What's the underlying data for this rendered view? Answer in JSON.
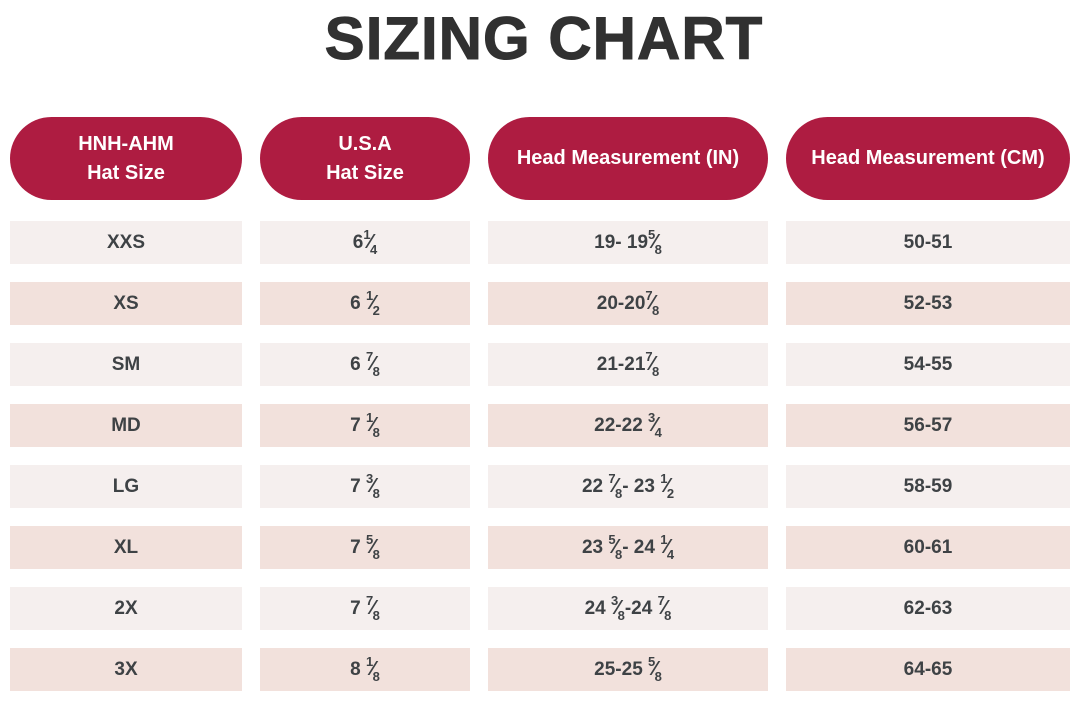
{
  "colors": {
    "header_bg": "#AE1C41",
    "header_text": "#FFFFFF",
    "row_light": "#F5EFEE",
    "row_dark": "#F2E1DC",
    "cell_text": "#3E4245",
    "title_text": "#313131"
  },
  "chart_data": {
    "type": "table",
    "title": "SIZING CHART",
    "columns": [
      {
        "id": "hnh-ahm-hat-size",
        "lines": [
          "HNH-AHM",
          "Hat Size"
        ]
      },
      {
        "id": "usa-hat-size",
        "lines": [
          "U.S.A",
          "Hat Size"
        ]
      },
      {
        "id": "head-measurement-in",
        "lines": [
          "Head Measurement (IN)"
        ]
      },
      {
        "id": "head-measurement-cm",
        "lines": [
          "Head Measurement (CM)"
        ]
      }
    ],
    "rows": [
      [
        "XXS",
        "6¼",
        "19- 19⅝",
        "50-51"
      ],
      [
        "XS",
        "6 ½",
        "20-20⅞",
        "52-53"
      ],
      [
        "SM",
        "6 ⅞",
        "21-21⅞",
        "54-55"
      ],
      [
        "MD",
        "7 ⅛",
        "22-22 ¾",
        "56-57"
      ],
      [
        "LG",
        "7 ⅜",
        "22 ⅞ - 23 ½",
        "58-59"
      ],
      [
        "XL",
        "7 ⅝",
        "23 ⅝ - 24 ¼",
        "60-61"
      ],
      [
        "2X",
        "7 ⅞",
        "24 ⅜-24 ⅞",
        "62-63"
      ],
      [
        "3X",
        "8 ⅛",
        "25-25 ⅝",
        "64-65"
      ]
    ]
  }
}
